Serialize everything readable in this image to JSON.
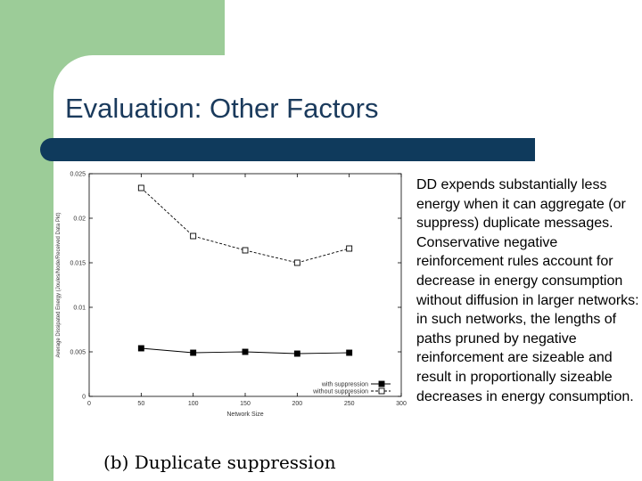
{
  "slide": {
    "title": "Evaluation: Other Factors",
    "caption": "(b) Duplicate suppression",
    "bullets": [
      "DD expends substantially less energy when it can aggregate (or suppress) duplicate messages.",
      "Conservative negative reinforcement rules account for decrease in energy consumption without diffusion in larger networks: in such networks, the lengths of paths pruned by negative reinforcement are sizeable and result in proportionally sizeable decreases in energy consumption."
    ],
    "colors": {
      "green": "#9ccc98",
      "navy": "#0f3a5c",
      "title": "#1a3a5c"
    }
  },
  "chart_data": {
    "type": "line",
    "title": "",
    "xlabel": "Network Size",
    "ylabel": "Average Dissipated Energy (Joules/Node/Received Data Pkt)",
    "xlim": [
      0,
      300
    ],
    "ylim": [
      0,
      0.025
    ],
    "xticks": [
      "0",
      "50",
      "100",
      "150",
      "200",
      "250",
      "300"
    ],
    "yticks": [
      "0",
      "0.005",
      "0.01",
      "0.015",
      "0.02",
      "0.025"
    ],
    "x": [
      50,
      100,
      150,
      200,
      250
    ],
    "series": [
      {
        "name": "with suppression",
        "marker": "filled-square",
        "values": [
          0.0054,
          0.0049,
          0.005,
          0.0048,
          0.0049
        ]
      },
      {
        "name": "without suppression",
        "marker": "open-square",
        "values": [
          0.0234,
          0.018,
          0.0164,
          0.015,
          0.0166
        ]
      }
    ],
    "legend": "bottom-right",
    "grid": false
  }
}
